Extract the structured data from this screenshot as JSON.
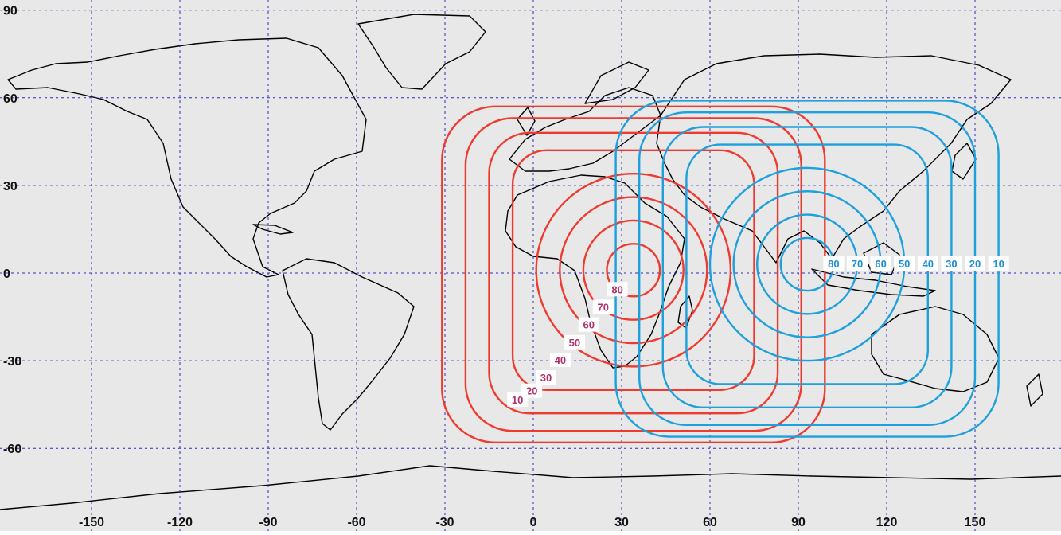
{
  "map": {
    "background_color": "#e8e8e8",
    "grid_color": "#2b2bb8",
    "red_color": "#ef3b2f",
    "red_label_color": "#b0306a",
    "blue_color": "#1ea0dc",
    "blue_label_color": "#1e8ed4",
    "lat_ticks": [
      {
        "value": 90,
        "label": "90"
      },
      {
        "value": 60,
        "label": "60"
      },
      {
        "value": 30,
        "label": "30"
      },
      {
        "value": 0,
        "label": "0"
      },
      {
        "value": -30,
        "label": "-30"
      },
      {
        "value": -60,
        "label": "-60"
      }
    ],
    "lon_ticks": [
      {
        "value": -150,
        "label": "-150"
      },
      {
        "value": -120,
        "label": "-120"
      },
      {
        "value": -90,
        "label": "-90"
      },
      {
        "value": -60,
        "label": "-60"
      },
      {
        "value": -30,
        "label": "-30"
      },
      {
        "value": 0,
        "label": "0"
      },
      {
        "value": 30,
        "label": "30"
      },
      {
        "value": 60,
        "label": "60"
      },
      {
        "value": 90,
        "label": "90"
      },
      {
        "value": 120,
        "label": "120"
      },
      {
        "value": 150,
        "label": "150"
      }
    ],
    "red_center": {
      "lon": 34,
      "lat": 1
    },
    "blue_center": {
      "lon": 93,
      "lat": 3
    },
    "contours": {
      "levels": [
        80,
        70,
        60,
        50,
        40,
        30,
        20,
        10
      ],
      "labels": [
        "80",
        "70",
        "60",
        "50",
        "40",
        "30",
        "20",
        "10"
      ]
    }
  }
}
